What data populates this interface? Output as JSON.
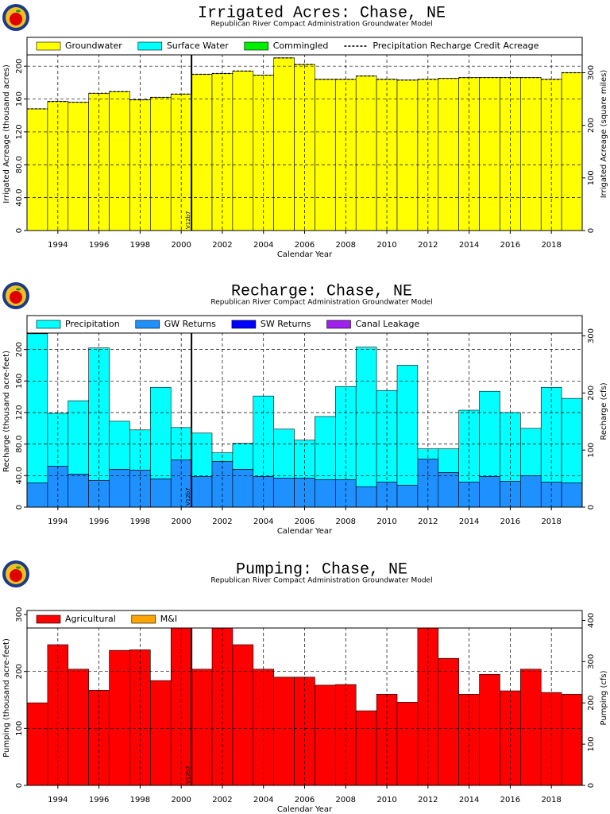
{
  "chart_data": [
    {
      "type": "bar",
      "stacked": true,
      "grid": true,
      "legend": "top",
      "title": "Irrigated Acres: Chase, NE",
      "subtitle": "Republican River Compact Administration Groundwater Model",
      "xlabel": "Calendar Year",
      "ylabel": "Irrigated Acreage (thousand acres)",
      "y2label": "Irrigated Acreage (square miles)",
      "x": [
        1993,
        1994,
        1995,
        1996,
        1997,
        1998,
        1999,
        2000,
        2001,
        2002,
        2003,
        2004,
        2005,
        2006,
        2007,
        2008,
        2009,
        2010,
        2011,
        2012,
        2013,
        2014,
        2015,
        2016,
        2017,
        2018,
        2019
      ],
      "xlim": [
        1992.5,
        2019.5
      ],
      "xticks": [
        1994,
        1996,
        1998,
        2000,
        2002,
        2004,
        2006,
        2008,
        2010,
        2012,
        2014,
        2016,
        2018
      ],
      "ylim": [
        0,
        235
      ],
      "yticks": [
        0,
        {
          "value": 40,
          "label": "40.0"
        },
        {
          "value": 80,
          "label": "80.0"
        },
        120,
        160,
        200
      ],
      "y2lim": [
        0,
        367.2
      ],
      "y2ticks": [
        0,
        100,
        200,
        300
      ],
      "annotation": {
        "x": 2000.5,
        "text": "V12b7"
      },
      "series": [
        {
          "name": "Groundwater",
          "color": "#ffff00",
          "values": [
            148,
            157,
            156,
            167,
            169,
            159,
            162,
            166,
            190,
            191,
            194,
            189,
            210,
            202,
            184,
            184,
            188,
            184,
            183,
            184,
            185,
            186,
            186,
            186,
            186,
            184,
            192
          ]
        },
        {
          "name": "Surface Water",
          "color": "#00ffff",
          "values": [
            0,
            0,
            0,
            0,
            0,
            0,
            0,
            0,
            0,
            0,
            0,
            0,
            0,
            0,
            0,
            0,
            0,
            0,
            0,
            0,
            0,
            0,
            0,
            0,
            0,
            0,
            0
          ]
        },
        {
          "name": "Commingled",
          "color": "#00ee00",
          "values": [
            0,
            0,
            0,
            0,
            0,
            0,
            0,
            0,
            0,
            0,
            0,
            0,
            0,
            0,
            0,
            0,
            0,
            0,
            0,
            0,
            0,
            0,
            0,
            0,
            0,
            0,
            0
          ]
        },
        {
          "name": "Precipitation Recharge Credit Acreage",
          "color": "#000000",
          "series_type": "line",
          "values": [
            148,
            157,
            156,
            167,
            169,
            159,
            162,
            166,
            190,
            191,
            194,
            189,
            210,
            202,
            184,
            184,
            188,
            184,
            183,
            184,
            185,
            186,
            186,
            186,
            186,
            184,
            192
          ]
        }
      ]
    },
    {
      "type": "bar",
      "stacked": true,
      "grid": true,
      "legend": "top",
      "title": "Recharge: Chase, NE",
      "subtitle": "Republican River Compact Administration Groundwater Model",
      "xlabel": "Calendar Year",
      "ylabel": "Recharge (thousand acre-feet)",
      "y2label": "Recharge (cfs)",
      "x": [
        1993,
        1994,
        1995,
        1996,
        1997,
        1998,
        1999,
        2000,
        2001,
        2002,
        2003,
        2004,
        2005,
        2006,
        2007,
        2008,
        2009,
        2010,
        2011,
        2012,
        2013,
        2014,
        2015,
        2016,
        2017,
        2018,
        2019
      ],
      "xlim": [
        1992.5,
        2019.5
      ],
      "xticks": [
        1994,
        1996,
        1998,
        2000,
        2002,
        2004,
        2006,
        2008,
        2010,
        2012,
        2014,
        2016,
        2018
      ],
      "ylim": [
        0,
        243
      ],
      "yticks": [
        0,
        {
          "value": 40,
          "label": "40.0"
        },
        {
          "value": 80,
          "label": "80.0"
        },
        120,
        160,
        200
      ],
      "y2lim": [
        0,
        335.6
      ],
      "y2ticks": [
        0,
        100,
        200,
        300
      ],
      "annotation": {
        "x": 2000.5,
        "text": "V12b7"
      },
      "series": [
        {
          "name": "GW Returns",
          "color": "#1e90ff",
          "values": [
            31,
            52,
            42,
            34,
            48,
            47,
            36,
            60,
            39,
            58,
            48,
            39,
            37,
            37,
            35,
            35,
            26,
            32,
            28,
            61,
            44,
            32,
            39,
            33,
            40,
            32,
            31
          ]
        },
        {
          "name": "Precipitation",
          "color": "#00ffff",
          "values": [
            189,
            67,
            93,
            168,
            61,
            51,
            116,
            41,
            55,
            11,
            33,
            102,
            62,
            48,
            80,
            118,
            177,
            116,
            152,
            13,
            30,
            91,
            108,
            87,
            60,
            120,
            107
          ]
        },
        {
          "name": "SW Returns",
          "color": "#0000ff",
          "values": [
            0,
            0,
            0,
            0,
            0,
            0,
            0,
            0,
            0,
            0,
            0,
            0,
            0,
            0,
            0,
            0,
            0,
            0,
            0,
            0,
            0,
            0,
            0,
            0,
            0,
            0,
            0
          ]
        },
        {
          "name": "Canal Leakage",
          "color": "#a020f0",
          "values": [
            0,
            0,
            0,
            0,
            0,
            0,
            0,
            0,
            0,
            0,
            0,
            0,
            0,
            0,
            0,
            0,
            0,
            0,
            0,
            0,
            0,
            0,
            0,
            0,
            0,
            0,
            0
          ]
        }
      ],
      "legend_order": [
        1,
        0,
        2,
        3
      ]
    },
    {
      "type": "bar",
      "stacked": true,
      "grid": true,
      "legend": "top",
      "title": "Pumping: Chase, NE",
      "subtitle": "Republican River Compact Administration Groundwater Model",
      "xlabel": "Calendar Year",
      "ylabel": "Pumping (thousand acre-feet)",
      "y2label": "Pumping (cfs)",
      "x": [
        1993,
        1994,
        1995,
        1996,
        1997,
        1998,
        1999,
        2000,
        2001,
        2002,
        2003,
        2004,
        2005,
        2006,
        2007,
        2008,
        2009,
        2010,
        2011,
        2012,
        2013,
        2014,
        2015,
        2016,
        2017,
        2018,
        2019
      ],
      "xlim": [
        1992.5,
        2019.5
      ],
      "xticks": [
        1994,
        1996,
        1998,
        2000,
        2002,
        2004,
        2006,
        2008,
        2010,
        2012,
        2014,
        2016,
        2018
      ],
      "ylim": [
        0,
        307
      ],
      "yticks": [
        0,
        100,
        200,
        300
      ],
      "y2lim": [
        0,
        424
      ],
      "y2ticks": [
        0,
        100,
        200,
        300,
        400
      ],
      "annotation": {
        "x": 2000.5,
        "text": "V12b7"
      },
      "series": [
        {
          "name": "Agricultural",
          "color": "#ff0000",
          "values": [
            145,
            247,
            204,
            167,
            237,
            238,
            184,
            300,
            204,
            291,
            247,
            204,
            190,
            190,
            176,
            177,
            131,
            160,
            146,
            304,
            223,
            160,
            195,
            166,
            204,
            163,
            160
          ]
        },
        {
          "name": "M&I",
          "color": "#ffa500",
          "values": [
            0,
            0,
            0,
            0,
            0,
            0,
            0,
            0,
            0,
            0,
            0,
            0,
            0,
            0,
            0,
            0,
            0,
            0,
            0,
            0,
            0,
            0,
            0,
            0,
            0,
            0,
            0
          ]
        }
      ]
    }
  ]
}
